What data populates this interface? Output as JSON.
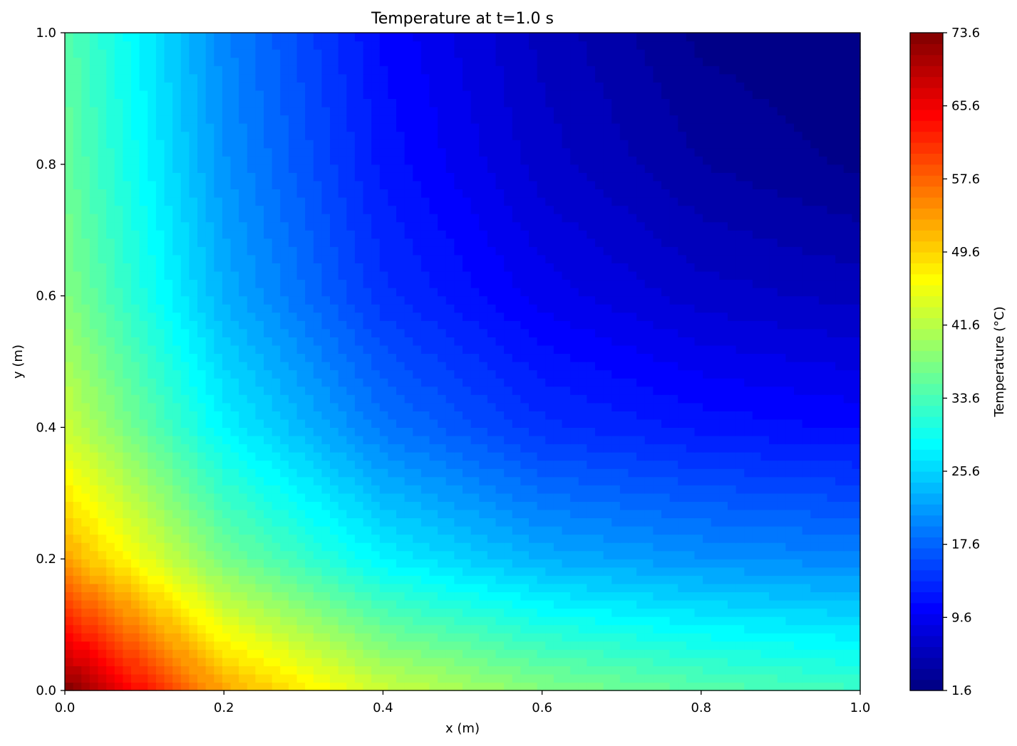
{
  "chart_data": {
    "type": "heatmap",
    "title": "Temperature at t=1.0 s",
    "xlabel": "x (m)",
    "ylabel": "y (m)",
    "xlim": [
      0.0,
      1.0
    ],
    "ylim": [
      0.0,
      1.0
    ],
    "xticks": [
      "0.0",
      "0.2",
      "0.4",
      "0.6",
      "0.8",
      "1.0"
    ],
    "yticks": [
      "0.0",
      "0.2",
      "0.4",
      "0.6",
      "0.8",
      "1.0"
    ],
    "colormap": "jet",
    "colorbar": {
      "label": "Temperature (°C)",
      "range": [
        1.6,
        73.6
      ],
      "ticks": [
        "1.6",
        "9.6",
        "17.6",
        "25.6",
        "33.6",
        "41.6",
        "49.6",
        "57.6",
        "65.6",
        "73.6"
      ]
    },
    "field": {
      "description_values": "sampled temperature (°C) at grid points, rows from y=0.0 to y=1.0, columns from x=0.0 to x=1.0",
      "x": [
        0.0,
        0.2,
        0.4,
        0.6,
        0.8,
        1.0
      ],
      "y": [
        0.0,
        0.2,
        0.4,
        0.6,
        0.8,
        1.0
      ],
      "values": [
        [
          73.6,
          53.0,
          43.0,
          38.0,
          35.0,
          33.0
        ],
        [
          53.0,
          37.0,
          28.0,
          23.0,
          21.0,
          20.0
        ],
        [
          43.0,
          28.0,
          19.0,
          14.0,
          12.0,
          11.0
        ],
        [
          38.0,
          23.0,
          14.0,
          9.5,
          7.0,
          6.0
        ],
        [
          36.0,
          21.0,
          12.0,
          7.0,
          4.0,
          2.5
        ],
        [
          35.0,
          20.0,
          11.0,
          6.0,
          2.5,
          1.6
        ]
      ]
    },
    "grid": false,
    "levels": 60
  }
}
